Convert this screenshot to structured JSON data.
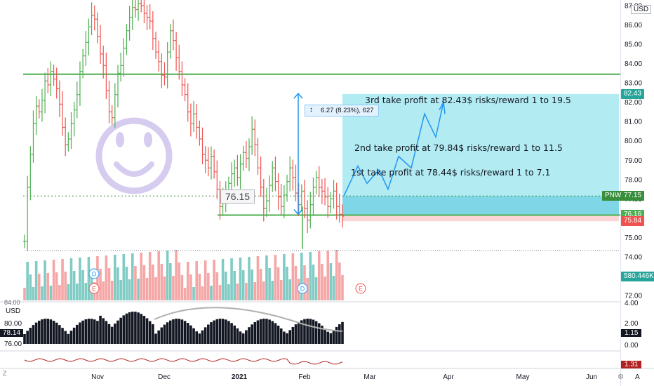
{
  "chart_data": {
    "type": "candlestick",
    "symbol": "PNW",
    "currency": "USD",
    "price_axis": {
      "range": [
        71.5,
        87.3
      ],
      "ticks": [
        "87.00",
        "86.00",
        "85.00",
        "84.00",
        "83.00",
        "82.00",
        "81.00",
        "80.00",
        "79.00",
        "78.00",
        "77.00",
        "75.00",
        "74.00",
        "72.00"
      ]
    },
    "time_axis": {
      "ticks": [
        "Nov",
        "Dec",
        "2021",
        "Feb",
        "Mar",
        "Apr",
        "May",
        "Jun"
      ]
    },
    "horizontal_lines": [
      {
        "price": 83.45,
        "color": "#4caf50"
      },
      {
        "price": 76.16,
        "color": "#4caf50"
      },
      {
        "price": 77.15,
        "color": "#4caf50",
        "style": "dotted"
      }
    ],
    "position": {
      "entry": 76.16,
      "stop": 75.84,
      "target": 82.43
    },
    "price_tags": [
      {
        "label": "82.43",
        "price": 82.43,
        "color": "#26a69a"
      },
      {
        "label": "PNW",
        "price": 77.15,
        "color": "#388e3c"
      },
      {
        "label": "77.15",
        "price": 77.15,
        "color": "#388e3c"
      },
      {
        "label": "76.16",
        "price": 76.16,
        "color": "#4caf50"
      },
      {
        "label": "75.84",
        "price": 75.84,
        "color": "#ef5350"
      },
      {
        "label": "580.446K",
        "price": 73.0,
        "color": "#26a69a"
      }
    ],
    "measure_label": "6.27 (8.23%), 627",
    "price_callout": "76.15",
    "annotations": [
      "3rd take profit at 82.43$ risks/reward 1 to 19.5",
      "2nd take profit at 79.84$ risks/reward 1 to 11.5",
      "1st take profit at 78.44$ risks/reward 1 to 7.1"
    ],
    "events": [
      "D",
      "E",
      "D",
      "E"
    ],
    "candles_close": [
      74.8,
      77.6,
      79.3,
      80.9,
      81.8,
      81.5,
      82.1,
      83.1,
      82.9,
      83.6,
      83.2,
      82.7,
      81.9,
      80.7,
      79.8,
      80.1,
      80.9,
      81.6,
      82.4,
      83.6,
      84.4,
      85.1,
      85.9,
      86.5,
      86.3,
      85.4,
      84.5,
      83.9,
      82.6,
      81.5,
      81.2,
      82.4,
      83.5,
      83.9,
      84.8,
      85.7,
      86.4,
      86.9,
      86.8,
      87.1,
      87.0,
      86.6,
      86.4,
      86.2,
      85.3,
      84.6,
      84.1,
      83.4,
      83.3,
      84.6,
      85.7,
      85.2,
      84.3,
      83.6,
      82.9,
      82.4,
      81.5,
      80.9,
      81.4,
      80.7,
      80.1,
      79.3,
      79.0,
      78.6,
      79.2,
      78.4,
      77.5,
      76.6,
      76.9,
      77.4,
      77.8,
      78.3,
      78.6,
      78.1,
      78.8,
      79.4,
      79.1,
      79.7,
      80.6,
      79.8,
      78.6,
      77.6,
      76.5,
      76.9,
      77.7,
      78.6,
      77.9,
      77.1,
      76.6,
      77.2,
      77.9,
      78.6,
      78.1,
      77.3,
      76.7,
      77.4,
      76.5,
      75.9,
      76.7,
      77.6,
      78.1,
      77.6,
      77.4,
      77.1,
      76.6,
      77.0,
      77.4,
      76.6,
      76.2,
      76.1
    ],
    "volume_pane": {
      "current": "580.446K"
    },
    "oscillator_pane": {
      "axis": [
        "84.00",
        "80.00",
        "78.00",
        "76.00"
      ],
      "right_axis": [
        "4.00",
        "2.00",
        "1.15",
        "0.00"
      ],
      "value_left": "78.14",
      "value_right": "1.15",
      "unit": "USD"
    },
    "bottom_pane": {
      "value": "1.31"
    }
  },
  "chrome": {
    "top_right_unit": "USD",
    "bottom_left": "Z",
    "bottom_right": "A"
  },
  "colors": {
    "up": "#4caf50",
    "down": "#ef5350",
    "vol_up": "#80cbc4",
    "vol_down": "#f5a6a6",
    "zone_profit": "#b2ebf2",
    "zone_loss": "#fbd5d5",
    "smiley": "#d6ccf0",
    "path": "#2196f3"
  }
}
